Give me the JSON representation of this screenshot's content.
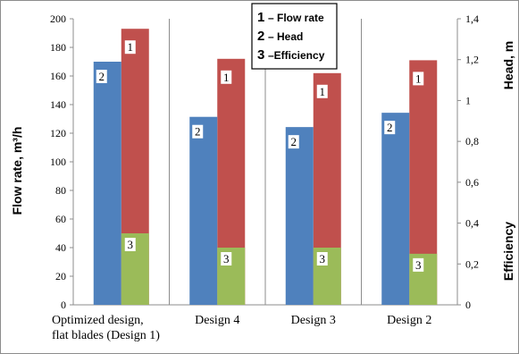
{
  "chart_data": {
    "type": "bar",
    "categories": [
      [
        "Optimized design,",
        "flat blades (Design 1)"
      ],
      [
        "Design 4"
      ],
      [
        "Design 3"
      ],
      [
        "Design 2"
      ]
    ],
    "series": [
      {
        "key": "flow",
        "name": "Flow rate",
        "marker": "1",
        "axis": "left",
        "color": "#c0504d",
        "values": [
          193,
          172,
          162,
          171
        ]
      },
      {
        "key": "head",
        "name": "Head",
        "marker": "2",
        "axis": "right",
        "color": "#4f81bd",
        "values": [
          1.19,
          0.92,
          0.87,
          0.94
        ]
      },
      {
        "key": "eff",
        "name": "Efficiency",
        "marker": "3",
        "axis": "right",
        "color": "#9bbb59",
        "values": [
          0.35,
          0.28,
          0.28,
          0.25
        ]
      }
    ],
    "ylabel_left": "Flow rate, m³/h",
    "ylabel_right_top": "Head, m",
    "ylabel_right_bottom": "Efficiency",
    "ylim_left": [
      0,
      200
    ],
    "yticks_left": [
      "0",
      "20",
      "40",
      "60",
      "80",
      "100",
      "120",
      "140",
      "160",
      "180",
      "200"
    ],
    "ylim_right": [
      0,
      1.4
    ],
    "yticks_right": [
      "0",
      "0,2",
      "0,4",
      "0,6",
      "0,8",
      "1",
      "1,2",
      "1,4"
    ],
    "legend": [
      {
        "num": "1",
        "text": "– Flow rate"
      },
      {
        "num": "2",
        "text": "– Head"
      },
      {
        "num": "3",
        "text": "–Efficiency"
      }
    ],
    "grid": "vertical",
    "legend_position": "top-center"
  }
}
